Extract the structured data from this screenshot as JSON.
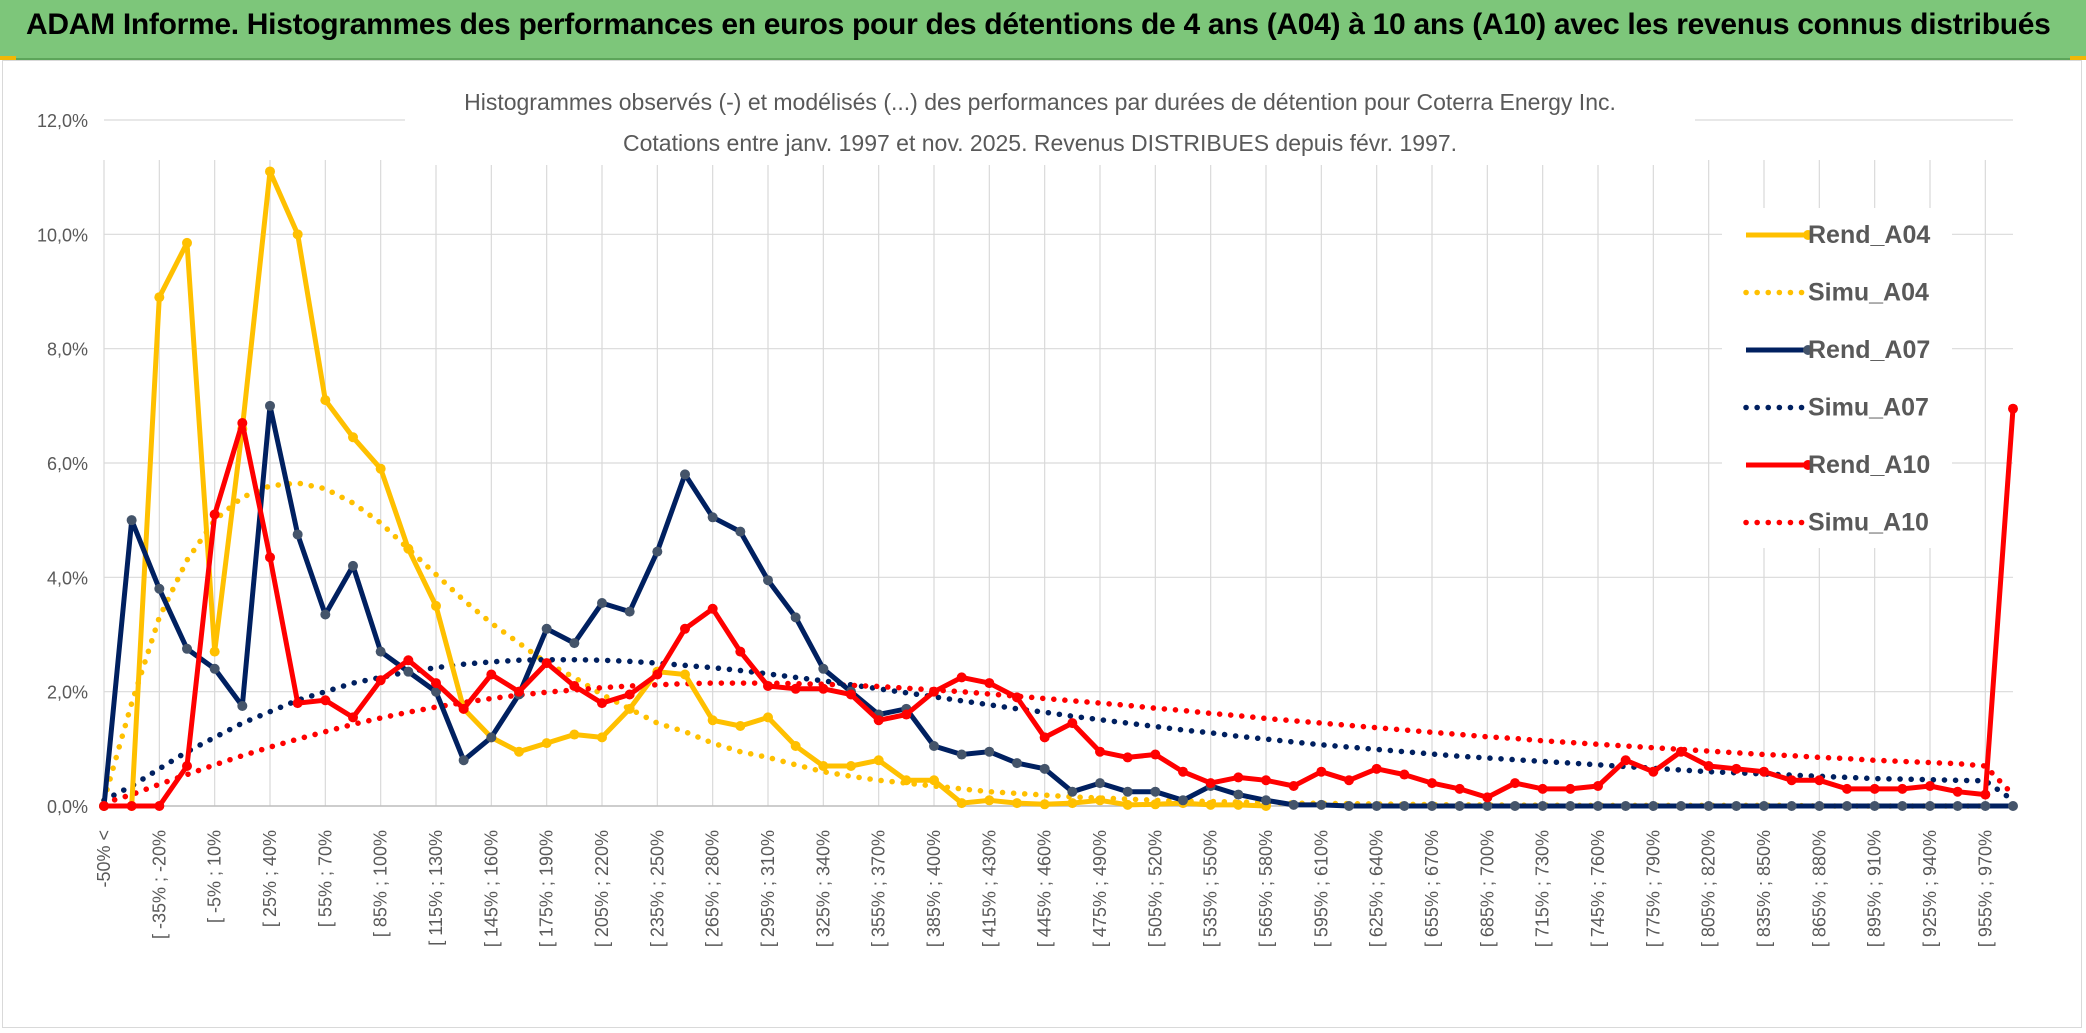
{
  "banner": {
    "title": "ADAM Informe. Histogrammes des performances en euros pour des détentions de 4 ans (A04) à 10 ans (A10) avec les revenus connus distribués"
  },
  "colors": {
    "banner_bg": "#7dc67a",
    "a04": "#ffc000",
    "a07": "#002060",
    "a10": "#ff0000",
    "a07_marker": "#44546a",
    "grid": "#d9d9d9",
    "axis_text": "#595959"
  },
  "chart_data": {
    "type": "line",
    "title_line1": "Histogrammes observés (-) et modélisés (...) des performances par durées de détention pour Coterra Energy Inc.",
    "title_line2": "Cotations entre janv. 1997 et nov. 2025. Revenus DISTRIBUES depuis févr. 1997.",
    "xlabel": "",
    "ylabel": "",
    "ylim": [
      0,
      12
    ],
    "y_ticks": [
      "0,0%",
      "2,0%",
      "4,0%",
      "6,0%",
      "8,0%",
      "10,0%",
      "12,0%"
    ],
    "grid": true,
    "legend_position": "right",
    "x_tick_labels": [
      "-50% <",
      "[ -35% ; -20%",
      "[ -5% ; 10%",
      "[ 25% ; 40%",
      "[ 55% ; 70%",
      "[ 85% ; 100%",
      "[ 115% ; 130%",
      "[ 145% ; 160%",
      "[ 175% ; 190%",
      "[ 205% ; 220%",
      "[ 235% ; 250%",
      "[ 265% ; 280%",
      "[ 295% ; 310%",
      "[ 325% ; 340%",
      "[ 355% ; 370%",
      "[ 385% ; 400%",
      "[ 415% ; 430%",
      "[ 445% ; 460%",
      "[ 475% ; 490%",
      "[ 505% ; 520%",
      "[ 535% ; 550%",
      "[ 565% ; 580%",
      "[ 595% ; 610%",
      "[ 625% ; 640%",
      "[ 655% ; 670%",
      "[ 685% ; 700%",
      "[ 715% ; 730%",
      "[ 745% ; 760%",
      "[ 775% ; 790%",
      "[ 805% ; 820%",
      "[ 835% ; 850%",
      "[ 865% ; 880%",
      "[ 895% ; 910%",
      "[ 925% ; 940%",
      "[ 955% ; 970%"
    ],
    "series": [
      {
        "name": "Rend_A04",
        "style": "solid",
        "color": "#ffc000",
        "values": [
          0.0,
          0.0,
          8.9,
          9.85,
          2.7,
          6.6,
          11.1,
          10.0,
          7.1,
          6.45,
          5.9,
          4.5,
          3.5,
          1.7,
          1.2,
          0.95,
          1.1,
          1.25,
          1.2,
          1.7,
          2.35,
          2.3,
          1.5,
          1.4,
          1.55,
          1.05,
          0.7,
          0.7,
          0.8,
          0.45,
          0.45,
          0.05,
          0.1,
          0.05,
          0.03,
          0.05,
          0.1,
          0.02,
          0.03,
          0.05,
          0.02,
          0.02,
          0.0
        ]
      },
      {
        "name": "Simu_A04",
        "style": "dotted",
        "color": "#ffc000",
        "values": [
          0.1,
          1.8,
          3.3,
          4.3,
          5.0,
          5.4,
          5.6,
          5.65,
          5.55,
          5.3,
          4.95,
          4.5,
          4.05,
          3.6,
          3.2,
          2.85,
          2.5,
          2.25,
          1.95,
          1.7,
          1.45,
          1.3,
          1.1,
          0.95,
          0.85,
          0.72,
          0.6,
          0.52,
          0.45,
          0.4,
          0.35,
          0.3,
          0.25,
          0.22,
          0.19,
          0.16,
          0.14,
          0.12,
          0.1,
          0.09,
          0.08,
          0.07,
          0.06,
          0.05,
          0.045,
          0.04,
          0.035,
          0.03,
          0.025,
          0.02,
          0.02,
          0.015,
          0.015,
          0.01,
          0.01,
          0.01,
          0.01,
          0.01,
          0.01,
          0.01,
          0.01,
          0.01,
          0.0,
          0.0,
          0.0,
          0.0,
          0.0,
          0.0,
          0.0
        ]
      },
      {
        "name": "Rend_A07",
        "style": "solid",
        "color": "#002060",
        "values": [
          0.0,
          5.0,
          3.8,
          2.75,
          2.4,
          1.75,
          7.0,
          4.75,
          3.35,
          4.2,
          2.7,
          2.35,
          2.0,
          0.8,
          1.2,
          1.95,
          3.1,
          2.85,
          3.55,
          3.4,
          4.45,
          5.8,
          5.05,
          4.8,
          3.95,
          3.3,
          2.4,
          2.0,
          1.6,
          1.7,
          1.05,
          0.9,
          0.95,
          0.75,
          0.65,
          0.25,
          0.4,
          0.25,
          0.25,
          0.1,
          0.35,
          0.2,
          0.1,
          0.02,
          0.02,
          0.0,
          0.0,
          0.0,
          0.0,
          0.0,
          0.0,
          0.0,
          0.0,
          0.0,
          0.0,
          0.0,
          0.0,
          0.0,
          0.0,
          0.0,
          0.0,
          0.0,
          0.0,
          0.0,
          0.0,
          0.0,
          0.0,
          0.0,
          0.0,
          0.0
        ]
      },
      {
        "name": "Simu_A07",
        "style": "dotted",
        "color": "#002060",
        "values": [
          0.1,
          0.35,
          0.65,
          0.95,
          1.2,
          1.45,
          1.65,
          1.85,
          2.0,
          2.15,
          2.25,
          2.35,
          2.42,
          2.48,
          2.52,
          2.55,
          2.56,
          2.56,
          2.55,
          2.53,
          2.5,
          2.46,
          2.42,
          2.37,
          2.31,
          2.25,
          2.19,
          2.12,
          2.05,
          1.98,
          1.91,
          1.84,
          1.77,
          1.7,
          1.64,
          1.57,
          1.51,
          1.45,
          1.39,
          1.33,
          1.28,
          1.22,
          1.17,
          1.12,
          1.07,
          1.03,
          0.99,
          0.95,
          0.91,
          0.87,
          0.84,
          0.81,
          0.78,
          0.75,
          0.72,
          0.69,
          0.66,
          0.63,
          0.6,
          0.58,
          0.56,
          0.54,
          0.52,
          0.5,
          0.48,
          0.47,
          0.46,
          0.45,
          0.44,
          0.1
        ]
      },
      {
        "name": "Rend_A10",
        "style": "solid",
        "color": "#ff0000",
        "values": [
          0.0,
          0.0,
          0.0,
          0.7,
          5.1,
          6.7,
          4.35,
          1.8,
          1.85,
          1.55,
          2.2,
          2.55,
          2.15,
          1.7,
          2.3,
          2.0,
          2.5,
          2.1,
          1.8,
          1.95,
          2.3,
          3.1,
          3.45,
          2.7,
          2.1,
          2.05,
          2.05,
          1.95,
          1.5,
          1.6,
          2.0,
          2.25,
          2.15,
          1.9,
          1.2,
          1.45,
          0.95,
          0.85,
          0.9,
          0.6,
          0.4,
          0.5,
          0.45,
          0.35,
          0.6,
          0.45,
          0.65,
          0.55,
          0.4,
          0.3,
          0.15,
          0.4,
          0.3,
          0.3,
          0.35,
          0.8,
          0.6,
          0.95,
          0.7,
          0.65,
          0.6,
          0.45,
          0.45,
          0.3,
          0.3,
          0.3,
          0.35,
          0.25,
          0.2,
          6.95
        ]
      },
      {
        "name": "Simu_A10",
        "style": "dotted",
        "color": "#ff0000",
        "values": [
          0.05,
          0.2,
          0.38,
          0.55,
          0.72,
          0.88,
          1.03,
          1.17,
          1.3,
          1.43,
          1.54,
          1.64,
          1.73,
          1.81,
          1.88,
          1.94,
          1.99,
          2.03,
          2.07,
          2.1,
          2.12,
          2.14,
          2.15,
          2.15,
          2.15,
          2.14,
          2.13,
          2.11,
          2.09,
          2.06,
          2.03,
          2.0,
          1.96,
          1.92,
          1.88,
          1.84,
          1.8,
          1.76,
          1.71,
          1.67,
          1.62,
          1.58,
          1.53,
          1.49,
          1.45,
          1.41,
          1.37,
          1.33,
          1.29,
          1.25,
          1.21,
          1.18,
          1.14,
          1.11,
          1.08,
          1.05,
          1.02,
          0.99,
          0.96,
          0.93,
          0.9,
          0.88,
          0.85,
          0.83,
          0.8,
          0.78,
          0.76,
          0.74,
          0.7,
          0.2
        ]
      }
    ]
  }
}
